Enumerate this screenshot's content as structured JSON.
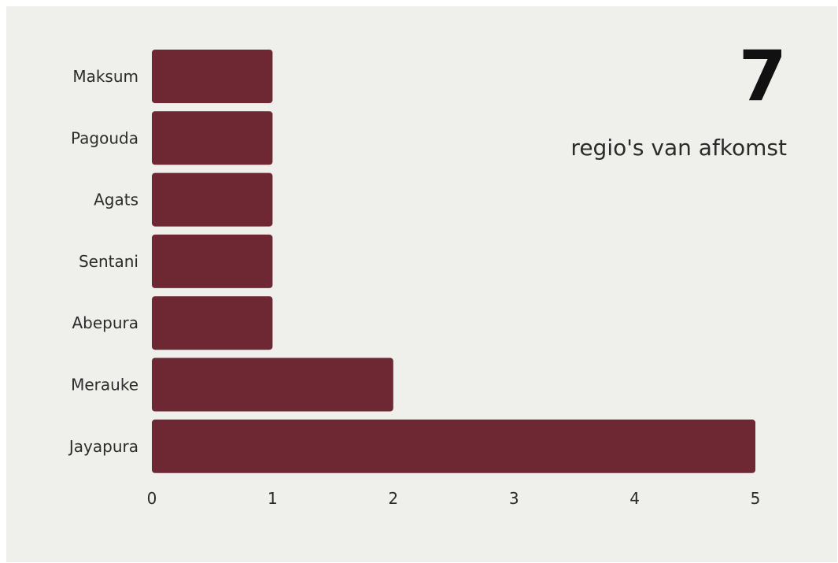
{
  "headline": {
    "number": "7",
    "text": "regio's van afkomst"
  },
  "chart_data": {
    "type": "bar",
    "orientation": "horizontal",
    "categories": [
      "Maksum",
      "Pagouda",
      "Agats",
      "Sentani",
      "Abepura",
      "Merauke",
      "Jayapura"
    ],
    "values": [
      1,
      1,
      1,
      1,
      1,
      2,
      5
    ],
    "xlim": [
      0,
      5
    ],
    "xticks": [
      0,
      1,
      2,
      3,
      4,
      5
    ],
    "bar_color": "#6e2834",
    "grid": false,
    "legend": "none"
  }
}
